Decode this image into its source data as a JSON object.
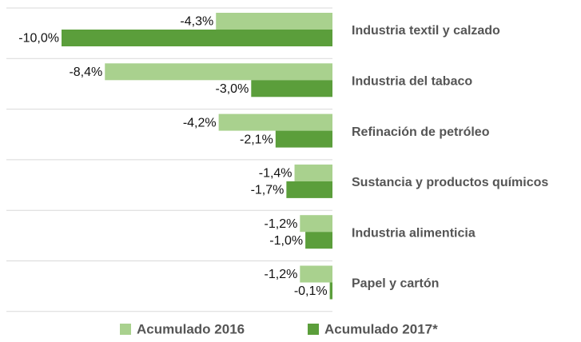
{
  "chart_data": {
    "type": "bar",
    "orientation": "horizontal",
    "categories": [
      "Industria textil y calzado",
      "Industria del tabaco",
      "Refinación de petróleo",
      "Sustancia y productos químicos",
      "Industria alimenticia",
      "Papel y cartón"
    ],
    "series": [
      {
        "name": "Acumulado 2016",
        "color": "#a9d18e",
        "values": [
          -4.3,
          -8.4,
          -4.2,
          -1.4,
          -1.2,
          -1.2
        ],
        "value_labels": [
          "-4,3%",
          "-8,4%",
          "-4,2%",
          "-1,4%",
          "-1,2%",
          "-1,2%"
        ]
      },
      {
        "name": "Acumulado 2017*",
        "color": "#5b9e3b",
        "values": [
          -10.0,
          -3.0,
          -2.1,
          -1.7,
          -1.0,
          -0.1
        ],
        "value_labels": [
          "-10,0%",
          "-3,0%",
          "-2,1%",
          "-1,7%",
          "-1,0%",
          "-0,1%"
        ]
      }
    ],
    "xlim": [
      -10,
      0
    ],
    "legend": "bottom"
  }
}
